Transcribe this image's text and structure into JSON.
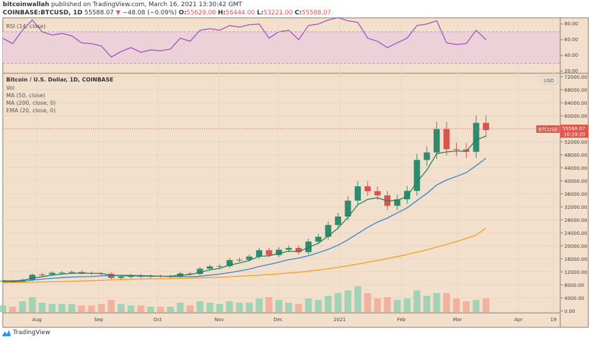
{
  "header": {
    "author": "bitcoinwallah",
    "published": "published on TradingView.com, March 16, 2021 13:30:42 GMT",
    "symbol": "COINBASE:BTCUSD, 1D",
    "last": "55588.07",
    "change": "−48.08 (−0.09%)",
    "o_label": "O:",
    "o": "55629.08",
    "h_label": "H:",
    "h": "56444.00",
    "l_label": "L:",
    "l": "53221.00",
    "c_label": "C:",
    "c": "55588.07"
  },
  "rsi_pane": {
    "label": "RSI (14, close)",
    "ticks": [
      "80.00",
      "60.00",
      "40.00",
      "20.00"
    ]
  },
  "price_pane": {
    "title": "Bitcoin / U.S. Dollar, 1D, COINBASE",
    "legend": [
      "Vol",
      "MA (50, close)",
      "MA (200, close, 0)",
      "EMA (20, close, 0)"
    ],
    "currency": "USD",
    "ticks": [
      "72000.00",
      "68000.00",
      "64000.00",
      "60000.00",
      "52000.00",
      "48000.00",
      "44000.00",
      "40000.00",
      "36000.00",
      "32000.00",
      "28000.00",
      "24000.00",
      "20000.00",
      "16000.00",
      "12000.00",
      "8000.00",
      "4000.00",
      "0.00"
    ],
    "tag_symbol": "BTCUSD",
    "tag_price": "55588.07",
    "tag_countdown": "10:29:20"
  },
  "time_axis": [
    "Aug",
    "Sep",
    "Oct",
    "Nov",
    "Dec",
    "2021",
    "Feb",
    "Mar",
    "Apr",
    "19"
  ],
  "colors": {
    "background": "#f3e0cc",
    "up": "#2e8b6e",
    "down": "#d9534f",
    "ema20": "#1e7f5c",
    "ma50": "#2f7fd6",
    "ma200": "#f79b1a",
    "rsi": "#9c4fc6",
    "rsi_band": "#ecd2d8",
    "tag": "#e2574c"
  },
  "chart_data": {
    "type": "candlestick",
    "interval_days": 5,
    "start": "2020-07-14",
    "end": "2021-03-16",
    "ylim": [
      0,
      74000
    ],
    "close": [
      9250,
      9200,
      9550,
      11100,
      11200,
      11700,
      11750,
      11950,
      11650,
      11500,
      11400,
      10100,
      10450,
      10950,
      10500,
      10750,
      10550,
      10650,
      11500,
      11350,
      12950,
      13650,
      13750,
      15600,
      15700,
      16700,
      18650,
      17150,
      18800,
      19350,
      18050,
      21300,
      22800,
      26400,
      29000,
      33900,
      38300,
      36800,
      35500,
      32300,
      34300,
      36900,
      46400,
      48700,
      55900,
      49700,
      49600,
      48900,
      57800,
      55588
    ],
    "ma200": [
      8700,
      8750,
      8800,
      8850,
      8900,
      8950,
      9000,
      9100,
      9200,
      9300,
      9400,
      9500,
      9600,
      9700,
      9800,
      9850,
      9900,
      9950,
      10000,
      10050,
      10150,
      10250,
      10350,
      10500,
      10650,
      10800,
      11000,
      11200,
      11400,
      11650,
      11900,
      12200,
      12550,
      12950,
      13400,
      13900,
      14400,
      14950,
      15500,
      16100,
      16700,
      17350,
      18050,
      18800,
      19600,
      20450,
      21350,
      22300,
      23300,
      25500
    ],
    "rsi": [
      62,
      55,
      72,
      85,
      70,
      66,
      68,
      65,
      56,
      55,
      52,
      38,
      45,
      50,
      44,
      47,
      46,
      48,
      62,
      58,
      72,
      74,
      72,
      78,
      76,
      79,
      80,
      62,
      70,
      72,
      60,
      78,
      80,
      85,
      88,
      84,
      82,
      62,
      58,
      50,
      56,
      62,
      78,
      80,
      84,
      56,
      54,
      55,
      72,
      60
    ],
    "volume_frac": [
      0.25,
      0.2,
      0.4,
      0.55,
      0.35,
      0.3,
      0.3,
      0.3,
      0.25,
      0.25,
      0.3,
      0.45,
      0.3,
      0.25,
      0.25,
      0.2,
      0.2,
      0.2,
      0.35,
      0.25,
      0.4,
      0.35,
      0.3,
      0.4,
      0.35,
      0.35,
      0.5,
      0.55,
      0.45,
      0.35,
      0.3,
      0.5,
      0.45,
      0.6,
      0.7,
      0.8,
      0.95,
      0.7,
      0.5,
      0.55,
      0.45,
      0.5,
      0.8,
      0.6,
      0.7,
      0.7,
      0.5,
      0.4,
      0.45,
      0.5
    ]
  }
}
